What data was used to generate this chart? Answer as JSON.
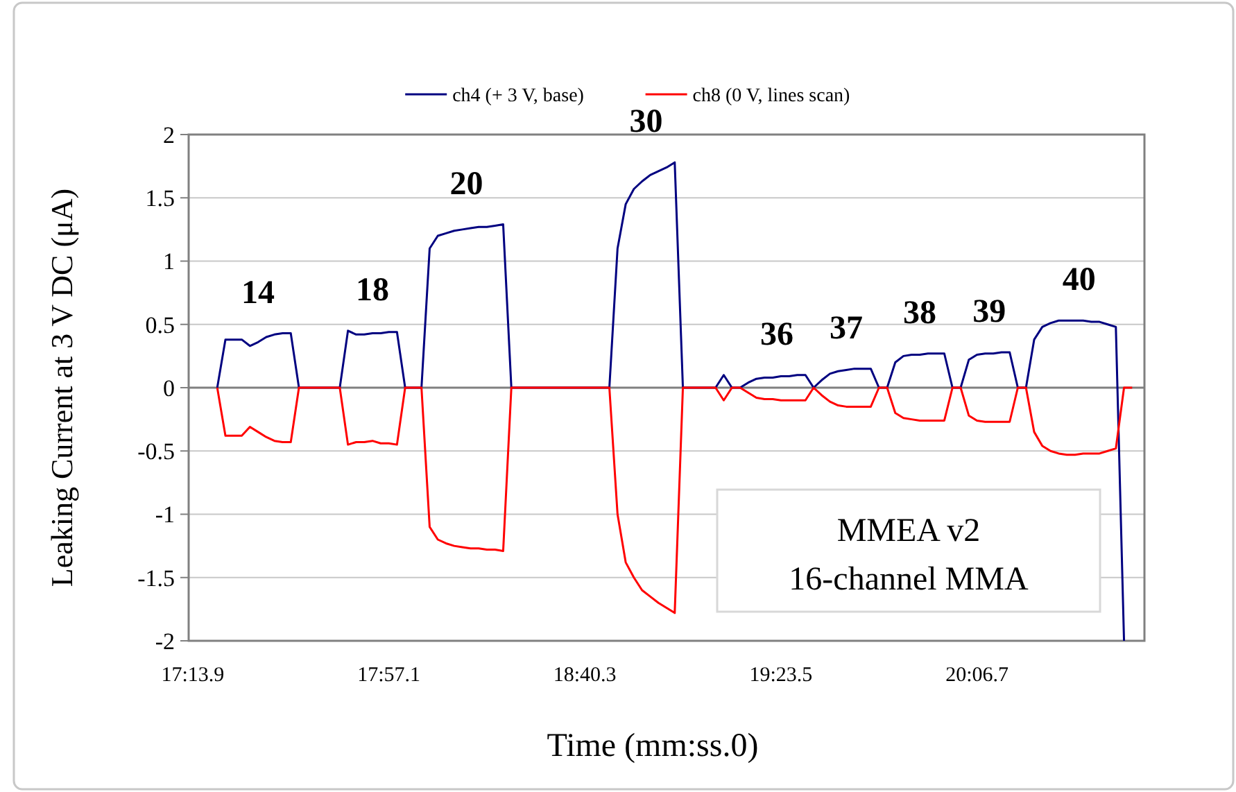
{
  "chart_data": {
    "type": "line",
    "xlabel": "Time (mm:ss.0)",
    "ylabel": "Leaking Current at 3 V DC (μA)",
    "categories": [
      "17:13.9",
      null,
      null,
      null,
      null,
      null,
      null,
      null,
      null,
      null,
      null,
      null,
      null,
      null,
      null,
      null,
      null,
      null,
      null,
      null,
      null,
      null,
      null,
      null,
      "17:57.1",
      null,
      null,
      null,
      null,
      null,
      null,
      null,
      null,
      null,
      null,
      null,
      null,
      null,
      null,
      null,
      null,
      null,
      null,
      null,
      null,
      null,
      null,
      null,
      "18:40.3",
      null,
      null,
      null,
      null,
      null,
      null,
      null,
      null,
      null,
      null,
      null,
      null,
      null,
      null,
      null,
      null,
      null,
      null,
      null,
      null,
      null,
      null,
      null,
      "19:23.5",
      null,
      null,
      null,
      null,
      null,
      null,
      null,
      null,
      null,
      null,
      null,
      null,
      null,
      null,
      null,
      null,
      null,
      null,
      null,
      null,
      null,
      null,
      null,
      "20:06.7",
      null,
      null,
      null,
      null,
      null,
      null,
      null,
      null,
      null,
      null,
      null,
      null,
      null,
      null,
      null,
      null,
      null,
      null,
      null,
      null
    ],
    "ylim": [
      -2,
      2
    ],
    "yticks": [
      -2,
      -1.5,
      -1,
      -0.5,
      0,
      0.5,
      1,
      1.5,
      2
    ],
    "grid": "y",
    "legend": "top",
    "marker": "none",
    "line_style": "solid",
    "series": [
      {
        "name": "ch4 (+ 3 V, base)",
        "color": "#000080",
        "values": [
          null,
          null,
          null,
          0,
          0.38,
          0.38,
          0.38,
          0.33,
          0.36,
          0.4,
          0.42,
          0.43,
          0.43,
          0,
          0,
          0,
          0,
          0,
          0,
          0.45,
          0.42,
          0.42,
          0.43,
          0.43,
          0.44,
          0.44,
          0,
          0,
          0,
          1.1,
          1.2,
          1.22,
          1.24,
          1.25,
          1.26,
          1.27,
          1.27,
          1.28,
          1.29,
          0,
          0,
          0,
          0,
          0,
          0,
          0,
          0,
          0,
          0,
          0,
          0,
          0,
          1.1,
          1.45,
          1.57,
          1.63,
          1.68,
          1.71,
          1.74,
          1.78,
          0,
          0,
          0,
          0,
          0,
          0.1,
          0,
          0,
          0.04,
          0.07,
          0.08,
          0.08,
          0.09,
          0.09,
          0.1,
          0.1,
          0,
          0.06,
          0.11,
          0.13,
          0.14,
          0.15,
          0.15,
          0.15,
          0,
          0,
          0.2,
          0.25,
          0.26,
          0.26,
          0.27,
          0.27,
          0.27,
          0,
          0,
          0.22,
          0.26,
          0.27,
          0.27,
          0.28,
          0.28,
          0,
          0,
          0.38,
          0.48,
          0.51,
          0.53,
          0.53,
          0.53,
          0.53,
          0.52,
          0.52,
          0.5,
          0.48,
          -2,
          null,
          null
        ]
      },
      {
        "name": "ch8 (0 V, lines scan)",
        "color": "#ff0000",
        "values": [
          null,
          null,
          null,
          0,
          -0.38,
          -0.38,
          -0.38,
          -0.31,
          -0.35,
          -0.39,
          -0.42,
          -0.43,
          -0.43,
          0,
          0,
          0,
          0,
          0,
          0,
          -0.45,
          -0.43,
          -0.43,
          -0.42,
          -0.44,
          -0.44,
          -0.45,
          0,
          0,
          0,
          -1.1,
          -1.2,
          -1.23,
          -1.25,
          -1.26,
          -1.27,
          -1.27,
          -1.28,
          -1.28,
          -1.29,
          0,
          0,
          0,
          0,
          0,
          0,
          0,
          0,
          0,
          0,
          0,
          0,
          0,
          -1.0,
          -1.38,
          -1.5,
          -1.6,
          -1.65,
          -1.7,
          -1.74,
          -1.78,
          0,
          0,
          0,
          0,
          0,
          -0.1,
          0,
          0,
          -0.04,
          -0.08,
          -0.09,
          -0.09,
          -0.1,
          -0.1,
          -0.1,
          -0.1,
          0,
          -0.06,
          -0.11,
          -0.14,
          -0.15,
          -0.15,
          -0.15,
          -0.15,
          0,
          0,
          -0.2,
          -0.24,
          -0.25,
          -0.26,
          -0.26,
          -0.26,
          -0.26,
          0,
          0,
          -0.22,
          -0.26,
          -0.27,
          -0.27,
          -0.27,
          -0.27,
          0,
          0,
          -0.35,
          -0.46,
          -0.5,
          -0.52,
          -0.53,
          -0.53,
          -0.52,
          -0.52,
          -0.52,
          -0.5,
          -0.48,
          0,
          0,
          null
        ]
      }
    ],
    "annotations": [
      "14",
      "18",
      "20",
      "30",
      "36",
      "37",
      "38",
      "39",
      "40",
      "MMEA v2",
      "16-channel MMA"
    ]
  }
}
